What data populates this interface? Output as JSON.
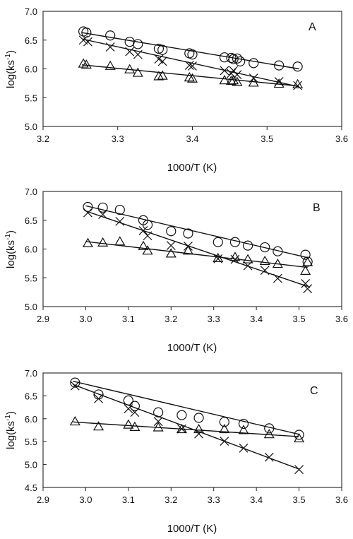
{
  "chart_data": [
    {
      "type": "scatter",
      "panel_label": "A",
      "xlabel": "1000/T (K)",
      "ylabel_main": "log(ks",
      "ylabel_sup": "-1",
      "ylabel_close": ")",
      "xlim": [
        3.2,
        3.6
      ],
      "ylim": [
        5.0,
        7.0
      ],
      "xticks": [
        3.2,
        3.3,
        3.4,
        3.5,
        3.6
      ],
      "yticks": [
        5.0,
        5.5,
        6.0,
        6.5,
        7.0
      ],
      "xtick_labels": [
        "3.2",
        "3.3",
        "3.4",
        "3.5",
        "3.6"
      ],
      "ytick_labels": [
        "5.0",
        "5.5",
        "6.0",
        "6.5",
        "7.0"
      ],
      "series": [
        {
          "marker": "circle",
          "x": [
            3.254,
            3.258,
            3.29,
            3.316,
            3.327,
            3.355,
            3.36,
            3.396,
            3.4,
            3.443,
            3.452,
            3.455,
            3.46,
            3.464,
            3.482,
            3.516,
            3.541
          ],
          "y": [
            6.65,
            6.63,
            6.58,
            6.47,
            6.43,
            6.35,
            6.33,
            6.27,
            6.25,
            6.2,
            6.19,
            6.17,
            6.18,
            6.13,
            6.1,
            6.06,
            6.04
          ],
          "fit": [
            [
              3.252,
              6.63
            ],
            [
              3.543,
              6.0
            ]
          ]
        },
        {
          "marker": "x",
          "x": [
            3.254,
            3.26,
            3.29,
            3.316,
            3.327,
            3.355,
            3.36,
            3.396,
            3.4,
            3.443,
            3.452,
            3.455,
            3.46,
            3.482,
            3.516,
            3.541
          ],
          "y": [
            6.5,
            6.47,
            6.38,
            6.3,
            6.25,
            6.17,
            6.13,
            6.06,
            6.05,
            5.97,
            5.92,
            5.97,
            5.9,
            5.84,
            5.78,
            5.71
          ],
          "fit": [
            [
              3.252,
              6.52
            ],
            [
              3.543,
              5.69
            ]
          ]
        },
        {
          "marker": "triangle",
          "x": [
            3.254,
            3.258,
            3.29,
            3.316,
            3.327,
            3.355,
            3.36,
            3.396,
            3.4,
            3.443,
            3.452,
            3.455,
            3.46,
            3.482,
            3.516,
            3.541
          ],
          "y": [
            6.09,
            6.07,
            6.05,
            5.99,
            5.93,
            5.87,
            5.88,
            5.85,
            5.83,
            5.8,
            5.79,
            5.8,
            5.77,
            5.76,
            5.74,
            5.73
          ],
          "fit": [
            [
              3.252,
              6.07
            ],
            [
              3.543,
              5.7
            ]
          ]
        }
      ]
    },
    {
      "type": "scatter",
      "panel_label": "B",
      "xlabel": "1000/T (K)",
      "ylabel_main": "log(ks",
      "ylabel_sup": "-1",
      "ylabel_close": ")",
      "xlim": [
        2.9,
        3.6
      ],
      "ylim": [
        5.0,
        7.0
      ],
      "xticks": [
        2.9,
        3.0,
        3.1,
        3.2,
        3.3,
        3.4,
        3.5,
        3.6
      ],
      "yticks": [
        5.0,
        5.5,
        6.0,
        6.5,
        7.0
      ],
      "xtick_labels": [
        "2.9",
        "3.0",
        "3.1",
        "3.2",
        "3.3",
        "3.4",
        "3.5",
        "3.6"
      ],
      "ytick_labels": [
        "5.0",
        "5.5",
        "6.0",
        "6.5",
        "7.0"
      ],
      "series": [
        {
          "marker": "circle",
          "x": [
            3.005,
            3.04,
            3.08,
            3.135,
            3.145,
            3.2,
            3.24,
            3.31,
            3.35,
            3.38,
            3.42,
            3.45,
            3.515,
            3.52
          ],
          "y": [
            6.73,
            6.72,
            6.68,
            6.5,
            6.42,
            6.31,
            6.27,
            6.12,
            6.12,
            6.06,
            6.03,
            5.96,
            5.9,
            5.78
          ],
          "fit": [
            [
              3.0,
              6.75
            ],
            [
              3.52,
              5.85
            ]
          ]
        },
        {
          "marker": "x",
          "x": [
            3.005,
            3.04,
            3.08,
            3.135,
            3.145,
            3.2,
            3.24,
            3.31,
            3.35,
            3.38,
            3.42,
            3.45,
            3.515,
            3.52
          ],
          "y": [
            6.63,
            6.6,
            6.48,
            6.32,
            6.23,
            6.06,
            6.05,
            5.83,
            5.82,
            5.71,
            5.63,
            5.49,
            5.4,
            5.31
          ],
          "fit": [
            [
              3.0,
              6.66
            ],
            [
              3.52,
              5.35
            ]
          ]
        },
        {
          "marker": "triangle",
          "x": [
            3.005,
            3.04,
            3.08,
            3.135,
            3.145,
            3.2,
            3.24,
            3.31,
            3.35,
            3.38,
            3.42,
            3.45,
            3.515,
            3.52
          ],
          "y": [
            6.1,
            6.11,
            6.13,
            6.05,
            5.97,
            5.92,
            5.97,
            5.84,
            5.86,
            5.82,
            5.79,
            5.74,
            5.62,
            5.77
          ],
          "fit": [
            [
              3.0,
              6.13
            ],
            [
              3.52,
              5.68
            ]
          ]
        }
      ]
    },
    {
      "type": "scatter",
      "panel_label": "C",
      "xlabel": "1000/T (K)",
      "ylabel_main": "log(ks",
      "ylabel_sup": "-1",
      "ylabel_close": ")",
      "xlim": [
        2.9,
        3.6
      ],
      "ylim": [
        4.5,
        7.0
      ],
      "xticks": [
        2.9,
        3.0,
        3.1,
        3.2,
        3.3,
        3.4,
        3.5,
        3.6
      ],
      "yticks": [
        4.5,
        5.0,
        5.5,
        6.0,
        6.5,
        7.0
      ],
      "xtick_labels": [
        "2.9",
        "3.0",
        "3.1",
        "3.2",
        "3.3",
        "3.4",
        "3.5",
        "3.6"
      ],
      "ytick_labels": [
        "4.5",
        "5.0",
        "5.5",
        "6.0",
        "6.5",
        "7.0"
      ],
      "series": [
        {
          "marker": "circle",
          "x": [
            2.975,
            3.03,
            3.1,
            3.115,
            3.17,
            3.225,
            3.265,
            3.325,
            3.37,
            3.43,
            3.5
          ],
          "y": [
            6.79,
            6.53,
            6.4,
            6.28,
            6.14,
            6.08,
            6.02,
            5.93,
            5.89,
            5.79,
            5.65
          ],
          "fit": [
            [
              2.97,
              6.82
            ],
            [
              3.5,
              5.66
            ]
          ]
        },
        {
          "marker": "x",
          "x": [
            2.975,
            3.03,
            3.1,
            3.115,
            3.17,
            3.225,
            3.265,
            3.325,
            3.37,
            3.43,
            3.5
          ],
          "y": [
            6.72,
            6.44,
            6.22,
            6.14,
            5.94,
            5.78,
            5.67,
            5.51,
            5.36,
            5.16,
            4.89
          ],
          "fit": [
            [
              2.97,
              6.75
            ],
            [
              3.5,
              4.9
            ]
          ]
        },
        {
          "marker": "triangle",
          "x": [
            2.975,
            3.03,
            3.1,
            3.115,
            3.17,
            3.225,
            3.265,
            3.325,
            3.37,
            3.43,
            3.5
          ],
          "y": [
            5.94,
            5.83,
            5.87,
            5.82,
            5.81,
            5.77,
            5.77,
            5.77,
            5.75,
            5.66,
            5.57
          ],
          "fit": [
            [
              2.97,
              5.93
            ],
            [
              3.5,
              5.61
            ]
          ]
        }
      ]
    }
  ]
}
